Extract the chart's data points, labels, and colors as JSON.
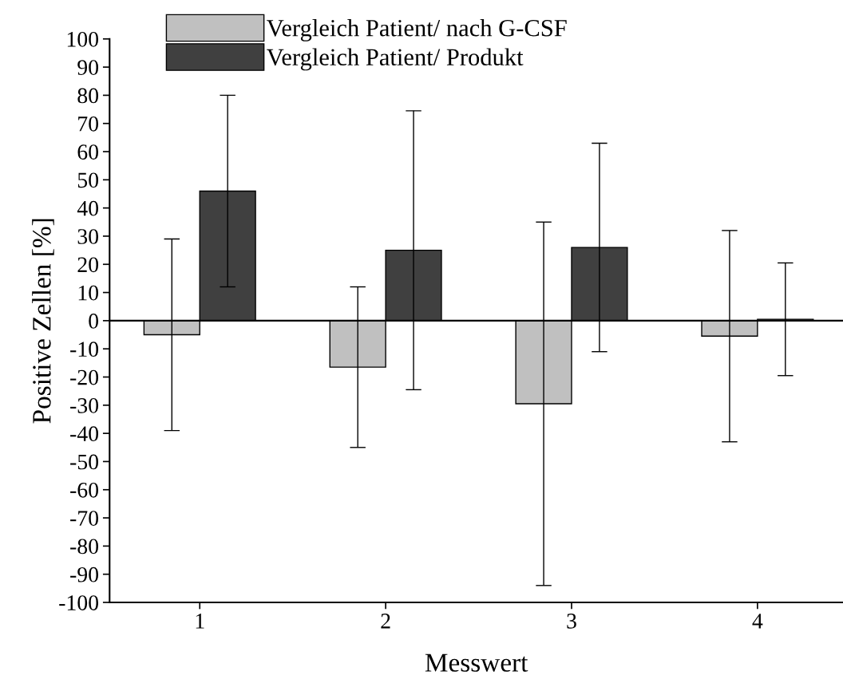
{
  "chart_data": {
    "type": "bar",
    "xlabel": "Messwert",
    "ylabel": "Positive Zellen [%]",
    "categories": [
      "1",
      "2",
      "3",
      "4"
    ],
    "series": [
      {
        "name": "Vergleich Patient/ nach G-CSF",
        "color": "#c0c0c0",
        "values": [
          -5,
          -16.5,
          -29.5,
          -5.5
        ],
        "errors": [
          34,
          28.5,
          64.5,
          37.5
        ]
      },
      {
        "name": "Vergleich Patient/ Produkt",
        "color": "#404040",
        "values": [
          46,
          25,
          26,
          0.5
        ],
        "errors": [
          34,
          49.5,
          37,
          20
        ]
      }
    ],
    "ylim": [
      -100,
      100
    ],
    "yticks": [
      -100,
      -90,
      -80,
      -70,
      -60,
      -50,
      -40,
      -30,
      -20,
      -10,
      0,
      10,
      20,
      30,
      40,
      50,
      60,
      70,
      80,
      90,
      100
    ],
    "ref_lines": [
      {
        "axis": "y",
        "value": 0,
        "label": null
      }
    ],
    "grid": false,
    "legend": "top"
  }
}
